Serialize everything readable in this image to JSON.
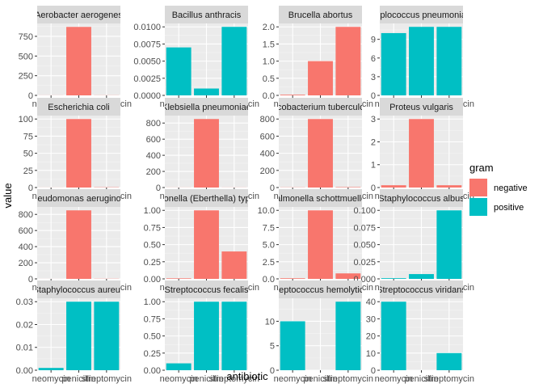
{
  "chart_data": {
    "type": "bar",
    "facet_layout": "4x4 grid, free y scales",
    "xlabel": "antibiotic",
    "ylabel": "value",
    "categories": [
      "neomycin",
      "penicillin",
      "streptomycin"
    ],
    "legend": {
      "title": "gram",
      "position": "right",
      "entries": [
        {
          "label": "negative",
          "color": "#F8766D"
        },
        {
          "label": "positive",
          "color": "#00BFC4"
        }
      ]
    },
    "grid": true,
    "panels": [
      {
        "title": "Aerobacter aerogenes",
        "gram": "negative",
        "values": [
          1.0,
          870,
          1.6
        ],
        "ylim": [
          0,
          914
        ],
        "ticks": [
          0,
          250,
          500,
          750
        ],
        "tick_labels": [
          "0",
          "250",
          "500",
          "750"
        ]
      },
      {
        "title": "Bacillus anthracis",
        "gram": "positive",
        "values": [
          0.007,
          0.001,
          0.01
        ],
        "ylim": [
          0,
          0.0105
        ],
        "ticks": [
          0,
          0.0025,
          0.005,
          0.0075,
          0.01
        ],
        "tick_labels": [
          "0.0000",
          "0.0025",
          "0.0050",
          "0.0075",
          "0.0100"
        ]
      },
      {
        "title": "Brucella abortus",
        "gram": "negative",
        "values": [
          0.02,
          1.0,
          2.0
        ],
        "ylim": [
          0,
          2.1
        ],
        "ticks": [
          0,
          0.5,
          1,
          1.5,
          2
        ],
        "tick_labels": [
          "0.0",
          "0.5",
          "1.0",
          "1.5",
          "2.0"
        ]
      },
      {
        "title": "Diplococcus pneumoniae",
        "gram": "positive",
        "values": [
          10,
          11,
          11
        ],
        "ylim": [
          0,
          11.55
        ],
        "ticks": [
          0,
          3,
          6,
          9
        ],
        "tick_labels": [
          "0",
          "3",
          "6",
          "9"
        ]
      },
      {
        "title": "Escherichia coli",
        "gram": "negative",
        "values": [
          0.1,
          100,
          0.4
        ],
        "ylim": [
          0,
          105
        ],
        "ticks": [
          0,
          25,
          50,
          75,
          100
        ],
        "tick_labels": [
          "0",
          "25",
          "50",
          "75",
          "100"
        ]
      },
      {
        "title": "Klebsiella pneumoniae",
        "gram": "negative",
        "values": [
          1,
          850,
          1.2
        ],
        "ylim": [
          0,
          892.5
        ],
        "ticks": [
          0,
          200,
          400,
          600,
          800
        ],
        "tick_labels": [
          "0",
          "200",
          "400",
          "600",
          "800"
        ]
      },
      {
        "title": "Mycobacterium tuberculosis",
        "gram": "negative",
        "values": [
          2,
          800,
          5
        ],
        "ylim": [
          0,
          840
        ],
        "ticks": [
          0,
          200,
          400,
          600,
          800
        ],
        "tick_labels": [
          "0",
          "200",
          "400",
          "600",
          "800"
        ]
      },
      {
        "title": "Proteus vulgaris",
        "gram": "negative",
        "values": [
          0.1,
          3,
          0.1
        ],
        "ylim": [
          0,
          3.15
        ],
        "ticks": [
          0,
          1,
          2,
          3
        ],
        "tick_labels": [
          "0",
          "1",
          "2",
          "3"
        ]
      },
      {
        "title": "Pseudomonas aeruginosa",
        "gram": "negative",
        "values": [
          0.4,
          850,
          2
        ],
        "ylim": [
          0,
          892.5
        ],
        "ticks": [
          0,
          200,
          400,
          600,
          800
        ],
        "tick_labels": [
          "0",
          "200",
          "400",
          "600",
          "800"
        ]
      },
      {
        "title": "Salmonella (Eberthella) typhosa",
        "gram": "negative",
        "values": [
          0.008,
          1,
          0.4
        ],
        "ylim": [
          0,
          1.05
        ],
        "ticks": [
          0,
          0.25,
          0.5,
          0.75,
          1
        ],
        "tick_labels": [
          "0.00",
          "0.25",
          "0.50",
          "0.75",
          "1.00"
        ]
      },
      {
        "title": "Salmonella schottmuelleri",
        "gram": "negative",
        "values": [
          0.09,
          10,
          0.8
        ],
        "ylim": [
          0,
          10.5
        ],
        "ticks": [
          0,
          2.5,
          5,
          7.5,
          10
        ],
        "tick_labels": [
          "0.0",
          "2.5",
          "5.0",
          "7.5",
          "10.0"
        ]
      },
      {
        "title": "Staphylococcus albus",
        "gram": "positive",
        "values": [
          0.001,
          0.007,
          0.1
        ],
        "ylim": [
          0,
          0.105
        ],
        "ticks": [
          0,
          0.025,
          0.05,
          0.075,
          0.1
        ],
        "tick_labels": [
          "0.000",
          "0.025",
          "0.050",
          "0.075",
          "0.100"
        ]
      },
      {
        "title": "Staphylococcus aureus",
        "gram": "positive",
        "values": [
          0.001,
          0.03,
          0.03
        ],
        "ylim": [
          0,
          0.0315
        ],
        "ticks": [
          0,
          0.01,
          0.02,
          0.03
        ],
        "tick_labels": [
          "0.00",
          "0.01",
          "0.02",
          "0.03"
        ]
      },
      {
        "title": "Streptococcus fecalis",
        "gram": "positive",
        "values": [
          0.1,
          1,
          1
        ],
        "ylim": [
          0,
          1.05
        ],
        "ticks": [
          0,
          0.25,
          0.5,
          0.75,
          1
        ],
        "tick_labels": [
          "0.00",
          "0.25",
          "0.50",
          "0.75",
          "1.00"
        ]
      },
      {
        "title": "Streptococcus hemolyticus",
        "gram": "positive",
        "values": [
          10,
          0.001,
          14
        ],
        "ylim": [
          0,
          14.7
        ],
        "ticks": [
          0,
          5,
          10
        ],
        "tick_labels": [
          "0",
          "5",
          "10"
        ]
      },
      {
        "title": "Streptococcus viridans",
        "gram": "positive",
        "values": [
          40,
          0.005,
          10
        ],
        "ylim": [
          0,
          42
        ],
        "ticks": [
          0,
          10,
          20,
          30,
          40
        ],
        "tick_labels": [
          "0",
          "10",
          "20",
          "30",
          "40"
        ]
      }
    ]
  }
}
